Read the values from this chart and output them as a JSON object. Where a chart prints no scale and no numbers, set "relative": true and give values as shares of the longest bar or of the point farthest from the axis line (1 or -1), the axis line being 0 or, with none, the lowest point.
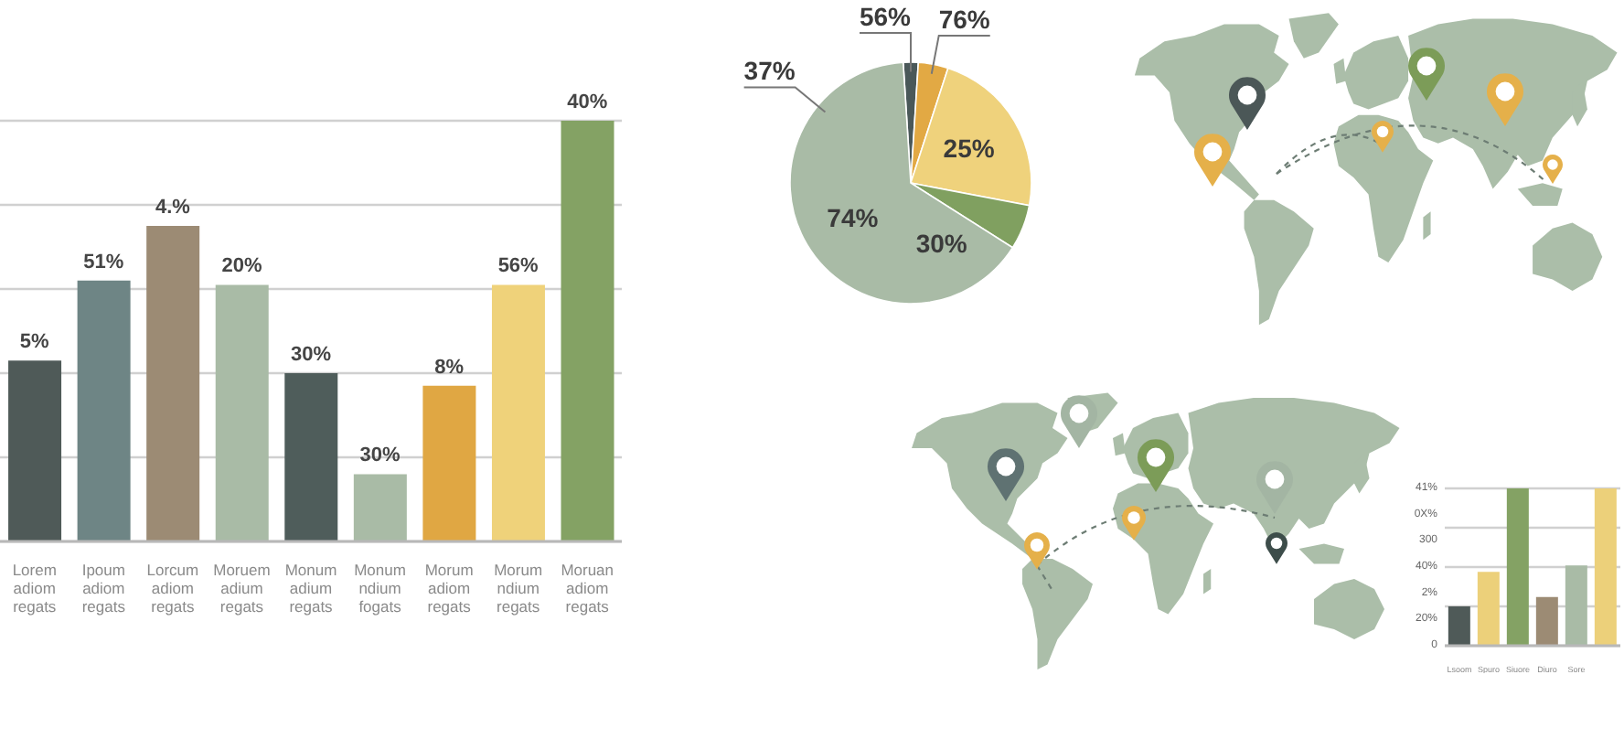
{
  "chart_data": [
    {
      "type": "bar",
      "categories": [
        "Lorem adiom regats",
        "Ipoum adiom regats",
        "Lorcum adiom regats",
        "Moruem adium regats",
        "Monum adium regats",
        "Monum ndium fogats",
        "Morum adiom regats",
        "Morum ndium regats",
        "Moruan adiom regats"
      ],
      "values": [
        0.43,
        0.62,
        0.75,
        0.61,
        0.4,
        0.16,
        0.37,
        0.61,
        1
      ],
      "colors": [
        "#4f5a58",
        "#6e8585",
        "#9c8b74",
        "#a9bba6",
        "#4f5d5b",
        "#a9bba6",
        "#e0a743",
        "#efd27a",
        "#84a264"
      ],
      "relative": true,
      "grid": "y",
      "annotations": [
        {
          "text": "5%",
          "x": "Lorem adiom regats",
          "y": 0.43
        },
        {
          "text": "51%",
          "x": "Ipoum adiom regats",
          "y": 0.62
        },
        {
          "text": "4.%",
          "x": "Lorcum adiom regats",
          "y": 0.75
        },
        {
          "text": "20%",
          "x": "Moruem adium regats",
          "y": 0.61
        },
        {
          "text": "30%",
          "x": "Monum adium regats",
          "y": 0.4
        },
        {
          "text": "30%",
          "x": "Monum ndium fogats",
          "y": 0.16
        },
        {
          "text": "8%",
          "x": "Morum adiom regats",
          "y": 0.37
        },
        {
          "text": "56%",
          "x": "Morum ndium regats",
          "y": 0.61
        },
        {
          "text": "40%",
          "x": "Moruan adiom regats",
          "y": 1
        }
      ]
    },
    {
      "type": "pie",
      "categories": [
        null,
        null,
        null,
        null,
        null
      ],
      "values": [
        2,
        4,
        23,
        6,
        65
      ],
      "colors": [
        "#4a5859",
        "#e2a944",
        "#efd27c",
        "#80a060",
        "#a9bba6"
      ],
      "annotations": [
        "56%",
        "76%",
        "37%",
        "74%",
        "25%",
        "30%"
      ]
    },
    {
      "type": "bar",
      "categories": [
        "Lsoom",
        "Spuro",
        "Siuore",
        "Diuro",
        "Sore",
        null
      ],
      "values": [
        0.25,
        0.47,
        1,
        0.31,
        0.51,
        1
      ],
      "colors": [
        "#4f5a58",
        "#ecd07a",
        "#84a264",
        "#9c8b74",
        "#a9bba6",
        "#ecd07a"
      ],
      "relative": true,
      "grid": "y",
      "annotations": [
        "41%",
        "0X%",
        "300",
        "40%",
        "2%",
        "20%",
        "0"
      ]
    }
  ]
}
